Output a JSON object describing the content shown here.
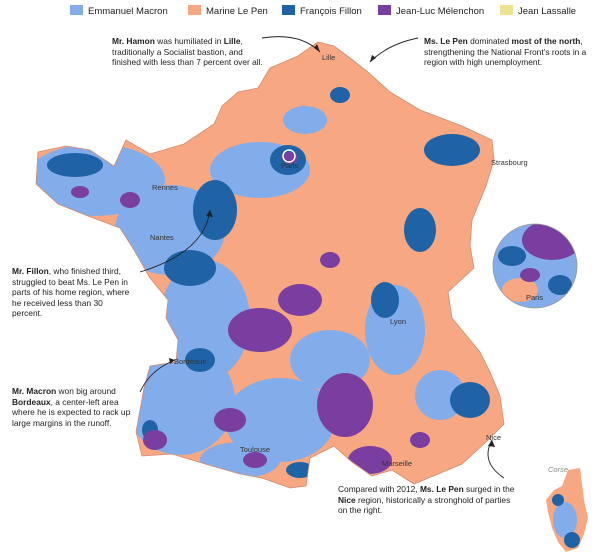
{
  "legend": [
    {
      "label": "Emmanuel Macron",
      "color": "#83acea"
    },
    {
      "label": "Marine Le Pen",
      "color": "#f7a882"
    },
    {
      "label": "François Fillon",
      "color": "#1f63a6"
    },
    {
      "label": "Jean-Luc Mélenchon",
      "color": "#7a3ea1"
    },
    {
      "label": "Jean Lassalle",
      "color": "#ece28f"
    }
  ],
  "cities": {
    "lille": "Lille",
    "paris": "Paris",
    "strasbourg": "Strasbourg",
    "rennes": "Rennes",
    "nantes": "Nantes",
    "lyon": "Lyon",
    "bordeaux": "Bordeaux",
    "toulouse": "Toulouse",
    "marseille": "Marseille",
    "nice": "Nice",
    "paris_inset": "Paris",
    "corse": "Corse"
  },
  "annotations": {
    "hamon": {
      "name": "Mr. Hamon",
      "t1": " was humiliated in ",
      "place": "Lille",
      "t2": ", traditionally a Socialist bastion, and finished with less than 7 percent over all."
    },
    "lepen_north": {
      "name": "Ms. Le Pen",
      "t1": " dominated ",
      "place": "most of the north",
      "t2": ", strengthening the National Front’s roots in a region with high unemployment."
    },
    "fillon": {
      "name": "Mr. Fillon",
      "t1": ", who finished third, struggled to beat Ms. Le Pen in parts of his home region, where he received less than 30 percent."
    },
    "macron": {
      "name": "Mr. Macron",
      "t1": " won big around ",
      "place": "Bordeaux",
      "t2": ", a center-left area where he is expected to rack up large margins in the runoff."
    },
    "lepen_nice": {
      "pre": "Compared with 2012, ",
      "name": "Ms. Le Pen",
      "t1": " surged in the ",
      "place": "Nice",
      "t2": " region, historically a stronghold of parties on the right."
    }
  }
}
